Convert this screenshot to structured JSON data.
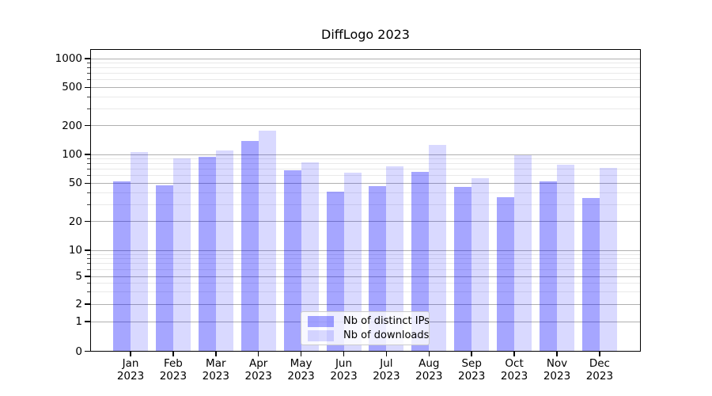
{
  "chart_data": {
    "type": "bar",
    "title": "DiffLogo 2023",
    "categories": [
      "Jan 2023",
      "Feb 2023",
      "Mar 2023",
      "Apr 2023",
      "May 2023",
      "Jun 2023",
      "Jul 2023",
      "Aug 2023",
      "Sep 2023",
      "Oct 2023",
      "Nov 2023",
      "Dec 2023"
    ],
    "series": [
      {
        "name": "Nb of distinct IPs",
        "color": "#0000ff",
        "alpha": 0.35,
        "values": [
          52,
          48,
          95,
          137,
          68,
          41,
          47,
          66,
          46,
          36,
          52,
          35
        ]
      },
      {
        "name": "Nb of downloads",
        "color": "#0000ff",
        "alpha": 0.15,
        "values": [
          105,
          91,
          110,
          177,
          83,
          65,
          75,
          126,
          57,
          99,
          78,
          72
        ]
      }
    ],
    "xlabel": "",
    "ylabel": "",
    "yscale": "symlog",
    "ylim": [
      0,
      1250
    ],
    "yticks": [
      0,
      1,
      2,
      5,
      10,
      20,
      50,
      100,
      200,
      500,
      1000
    ],
    "yticks_minor": [
      3,
      4,
      6,
      7,
      8,
      9,
      30,
      40,
      60,
      70,
      80,
      90,
      300,
      400,
      600,
      700,
      800,
      900
    ],
    "grid": {
      "major": true,
      "minor": true,
      "major_color": "#b0b0b0",
      "minor_color": "#e9e9e9"
    },
    "legend": {
      "position": "lower center",
      "entries": [
        "Nb of distinct IPs",
        "Nb of downloads"
      ]
    }
  }
}
